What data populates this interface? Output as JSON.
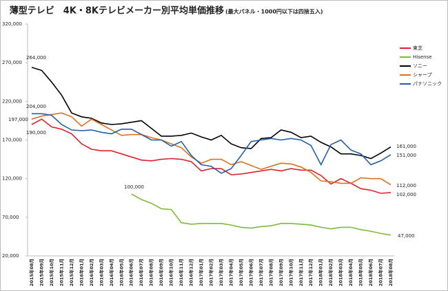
{
  "chart_data": {
    "type": "line",
    "title": "薄型テレビ　4K・8Kテレビメーカー別平均単価推移",
    "subtitle": "(最大パネル・1000円以下は四捨五入)",
    "categories": [
      "2015年08月",
      "2015年09月",
      "2015年10月",
      "2015年11月",
      "2015年12月",
      "2016年01月",
      "2016年02月",
      "2016年03月",
      "2016年04月",
      "2016年05月",
      "2016年06月",
      "2016年07月",
      "2016年08月",
      "2016年09月",
      "2016年10月",
      "2016年11月",
      "2016年12月",
      "2017年01月",
      "2017年02月",
      "2017年03月",
      "2017年04月",
      "2017年05月",
      "2017年06月",
      "2017年07月",
      "2017年08月",
      "2017年09月",
      "2017年10月",
      "2017年11月",
      "2017年12月",
      "2018年01月",
      "2018年02月",
      "2018年03月",
      "2018年04月",
      "2018年05月",
      "2018年06月",
      "2018年07月",
      "2018年08月"
    ],
    "series": [
      {
        "name": "東芝",
        "color": "#e0202a",
        "values": [
          190000,
          197000,
          187000,
          184000,
          178000,
          165000,
          158000,
          156000,
          156000,
          152000,
          148000,
          144000,
          143000,
          145000,
          146000,
          145000,
          142000,
          130000,
          133000,
          133000,
          125000,
          126000,
          128000,
          130000,
          132000,
          130000,
          133000,
          131000,
          131000,
          124000,
          113000,
          120000,
          114000,
          107000,
          105000,
          101000,
          102000
        ]
      },
      {
        "name": "Hisense",
        "color": "#7dbb3a",
        "values": [
          null,
          null,
          null,
          null,
          null,
          null,
          null,
          null,
          null,
          null,
          100000,
          93000,
          88000,
          81000,
          80000,
          63000,
          61000,
          62000,
          62000,
          62000,
          60000,
          57000,
          56000,
          58000,
          59000,
          62000,
          62000,
          61000,
          60000,
          57000,
          55000,
          57000,
          57000,
          54000,
          52000,
          49000,
          47000
        ]
      },
      {
        "name": "ソニー",
        "color": "#000000",
        "values": [
          264000,
          260000,
          245000,
          228000,
          205000,
          200000,
          198000,
          192000,
          190000,
          191000,
          193000,
          195000,
          185000,
          175000,
          175000,
          176000,
          179000,
          174000,
          170000,
          176000,
          165000,
          160000,
          159000,
          172000,
          173000,
          183000,
          180000,
          173000,
          175000,
          167000,
          161000,
          152000,
          152000,
          150000,
          146000,
          153000,
          161000
        ]
      },
      {
        "name": "シャープ",
        "color": "#e07020",
        "values": [
          197000,
          201000,
          203000,
          205000,
          200000,
          188000,
          197000,
          190000,
          183000,
          176000,
          177000,
          177000,
          173000,
          170000,
          165000,
          160000,
          148000,
          140000,
          145000,
          145000,
          138000,
          142000,
          137000,
          132000,
          136000,
          140000,
          139000,
          135000,
          128000,
          117000,
          116000,
          114000,
          114000,
          121000,
          120000,
          120000,
          112000
        ]
      },
      {
        "name": "パナソニック",
        "color": "#1f5fa8",
        "values": [
          204000,
          204000,
          202000,
          190000,
          183000,
          182000,
          183000,
          180000,
          178000,
          184000,
          184000,
          177000,
          170000,
          170000,
          162000,
          168000,
          150000,
          138000,
          136000,
          127000,
          133000,
          150000,
          168000,
          170000,
          172000,
          170000,
          172000,
          170000,
          163000,
          138000,
          164000,
          170000,
          157000,
          152000,
          138000,
          143000,
          151000
        ]
      }
    ],
    "annotations": [
      "264,000",
      "204,000",
      "197,000",
      "190,000",
      "100,000",
      "161,000",
      "151,000",
      "112,000",
      "102,000",
      "47,000"
    ],
    "ylim": [
      20000,
      320000
    ],
    "yticks": [
      {
        "value": 20000,
        "label": "20,000"
      },
      {
        "value": 70000,
        "label": "70,000"
      },
      {
        "value": 120000,
        "label": "120,000"
      },
      {
        "value": 170000,
        "label": "170,000"
      },
      {
        "value": 220000,
        "label": "220,000"
      },
      {
        "value": 270000,
        "label": "270,000"
      },
      {
        "value": 320000,
        "label": "320,000"
      }
    ],
    "grid": false,
    "legend": "right"
  }
}
